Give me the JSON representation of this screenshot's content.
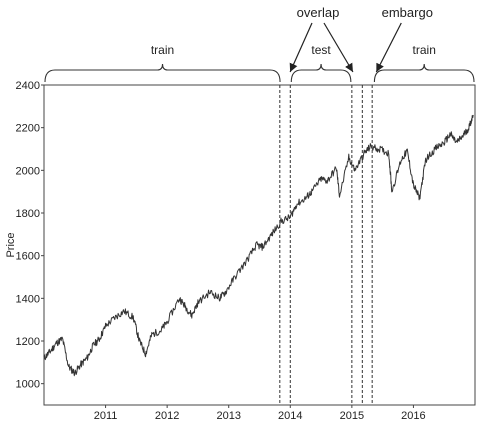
{
  "chart_data": {
    "type": "line",
    "ylabel": "Price",
    "xlabel": "",
    "ylim": [
      900,
      2400
    ],
    "xlim": [
      2010.0,
      2017.0
    ],
    "yticks": [
      1000,
      1200,
      1400,
      1600,
      1800,
      2000,
      2200,
      2400
    ],
    "xticks": [
      {
        "label": "2011",
        "value": 2011.0
      },
      {
        "label": "2012",
        "value": 2012.0
      },
      {
        "label": "2013",
        "value": 2013.0
      },
      {
        "label": "2014",
        "value": 2014.0
      },
      {
        "label": "2015",
        "value": 2015.0
      },
      {
        "label": "2016",
        "value": 2016.0
      }
    ],
    "series": [
      {
        "x": [
          2010.0,
          2010.1,
          2010.2,
          2010.3,
          2010.4,
          2010.5,
          2010.6,
          2010.7,
          2010.8,
          2010.9,
          2011.0,
          2011.15,
          2011.3,
          2011.45,
          2011.55,
          2011.65,
          2011.75,
          2011.9,
          2012.0,
          2012.2,
          2012.3,
          2012.4,
          2012.5,
          2012.7,
          2012.85,
          2012.95,
          2013.1,
          2013.3,
          2013.45,
          2013.55,
          2013.7,
          2013.85,
          2014.0,
          2014.1,
          2014.25,
          2014.35,
          2014.5,
          2014.6,
          2014.75,
          2014.8,
          2014.95,
          2015.05,
          2015.2,
          2015.3,
          2015.45,
          2015.6,
          2015.65,
          2015.8,
          2015.9,
          2016.0,
          2016.1,
          2016.2,
          2016.35,
          2016.5,
          2016.6,
          2016.7,
          2016.8,
          2016.9,
          2016.97
        ],
        "values": [
          1120,
          1150,
          1190,
          1210,
          1080,
          1050,
          1090,
          1120,
          1180,
          1210,
          1270,
          1310,
          1340,
          1310,
          1200,
          1140,
          1230,
          1250,
          1290,
          1400,
          1360,
          1320,
          1380,
          1430,
          1400,
          1430,
          1500,
          1580,
          1650,
          1640,
          1700,
          1760,
          1780,
          1840,
          1870,
          1900,
          1960,
          1950,
          2010,
          1880,
          2060,
          2000,
          2080,
          2110,
          2100,
          2080,
          1900,
          2050,
          2090,
          1930,
          1870,
          2050,
          2100,
          2130,
          2170,
          2130,
          2160,
          2200,
          2260
        ]
      }
    ],
    "regions": [
      {
        "label": "train",
        "x0": 2010.0,
        "x1": 2013.85
      },
      {
        "label": "test",
        "x0": 2014.0,
        "x1": 2015.0
      },
      {
        "label": "train",
        "x0": 2015.35,
        "x1": 2017.0
      }
    ],
    "vlines": [
      2013.83,
      2014.0,
      2015.0,
      2015.17,
      2015.33
    ],
    "annotations": [
      {
        "label": "overlap",
        "anchor_x": 2014.45,
        "targets": [
          2013.9,
          2015.05
        ]
      },
      {
        "label": "embargo",
        "anchor_x": 2015.9,
        "targets": [
          2015.3
        ]
      }
    ]
  }
}
